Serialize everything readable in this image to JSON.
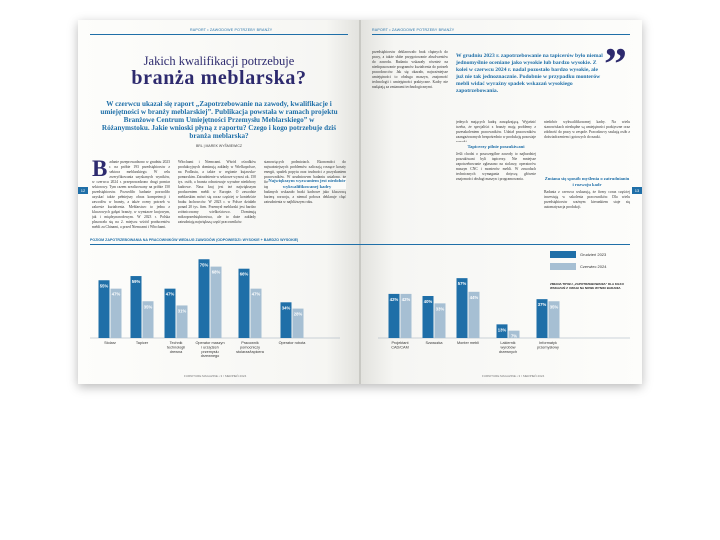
{
  "running_head": {
    "left": "RAPORT  •  ZAWODOWE POTRZEBY BRANŻY",
    "right": "RAPORT  •  ZAWODOWE POTRZEBY BRANŻY"
  },
  "article": {
    "title_line1": "Jakich kwalifikacji potrzebuje",
    "title_line2": "branża meblarska?",
    "lead": "W czerwcu ukazał się raport „Zapotrzebowanie na zawody, kwalifikacje i umiejętności w branży meblarskiej”. Publikacja powstała w ramach projektu Branżowe Centrum Umiejętności Przemysłu Meblarskiego” w Różanymstoku. Jakie wnioski płyną z raportu? Czego i kogo potrzebuje dziś branża meblarska?",
    "byline": "BRL | MAREK WYŚMIEWICZ"
  },
  "page_numbers": {
    "left": "12",
    "right": "13"
  },
  "left_columns": {
    "col1_dropcap": "B",
    "col1": "adanie przeprowadzono w grudniu 2023 r. na próbie 193 przedsiębiorstw z sektora meblarskiego. W celu zweryfikowania uzyskanych wyników, w czerwcu 2024 r. przeprowadzono drugi pomiar sektorowy. Tym razem zrealizowany na próbie 150 przedsiębiorstw. Pozwoliło badanie pozwoliło uzyskać także pełniejszy obraz kompetencji i zawodów w branży, a także oceny potrzeb w zakresie kształcenia. Meblarstwo to jedna z kluczowych gałęzi branży, w wymiarze krajowym, jak i międzynarodowym. W 2023 r. Polska plasowała się na 2. miejscu wśród producentów mebli za Chinami, a przed Niemcami i Włochami.",
    "col2": "Włochami i Niemcami. Wśród ośrodków produkcyjnych dominują zakłady w Wielkopolsce, na Podlasiu, a także w regionie kujawsko-pomorskim. Zatrudnienie w sektorze wynosi ok. 150 tys. osób, a branża odnotowuje wyraźne niedobory kadrowe. Nasz kraj jest też największym producentem mebli w Europie. O zawodzie meblarskim mówi się coraz częściej w kontekście braku fachowców. W 2023 r. w Polsce działało ponad 20 tys. firm. Przemysł meblarski jest bardzo zróżnicowany wielkościowo. Dominują mikroprzedsiębiorstwa, ale to duże zakłady zatrudniają największą część pracowników.",
    "col3_sub": "Największym wyzwaniem jest niedobór wykwalifikowanej kadry",
    "col3": "stanowiących podmiotach. Ekonomiści do najważniejszych problemów zaliczają rosnące koszty energii, spadek popytu oraz trudności z pozyskaniem pracowników. W grudniowym badaniu ustalono, że firmy z branży potrzebują przede wszystkim stolarzy, tapicerów i operatorów maszyn CNC. Ponad 60% badanych wskazało braki kadrowe jako kluczową barierę rozwoju, a niemal połowa deklaruje chęć zatrudnienia w najbliższym roku."
  },
  "right_page": {
    "top_col": "przedsiębiorstw deklarowało brak chętnych do pracy, a także słabe przygotowanie absolwentów do zawodu. Badania wskazały również na niedopasowanie programów kształcenia do potrzeb pracodawców. Jak się okazało, najważniejsze umiejętności to obsługa maszyn, znajomość technologii i umiejętności praktyczne. Kadry nie nadążają za zmianami technologicznymi.",
    "quote": "W grudniu 2023 r. zapotrzebowanie na tapicerów było niemal jednomyślnie oceniane jako wysokie lub bardzo wysokie. Z kolei w czerwcu 2024 r. nadal pozostało bardzo wysokie, ale już nie tak jednoznacznie. Podobnie w przypadku monterów mebli widać wyraźny spadek wskazań wysokiego zapotrzebowania.",
    "col2": "jednych mających kadrę zarządzającą. Wyjaśnić trzeba, że specjaliści z branży mają problemy z przeszkoleniem pracowników. Udział pracowników zaangażowanych bezpośrednio w produkcję pozostaje wysoki.",
    "col2_sub": "Tapicerzy pilnie poszukiwani",
    "col2_b": "Jeśli chodzi o poszczególne zawody to najbardziej poszukiwani byli tapicerzy. Nie mniejsze zapotrzebowanie zgłaszano na stolarzy, operatorów maszyn CNC i monterów mebli. W zawodach technicznych wymagania dotyczą głównie znajomości obsługi maszyn i programowania.",
    "col3": "niedobór wykwalifikowanej kadry. Na wielu stanowiskach niezbędne są umiejętności praktyczne oraz zdolność do pracy w zespole. Pracodawcy szukają osób z doświadczeniem i gotowych do nauki.",
    "col3_sub": "Zmiana się sposób myślenia o zatrudnianiu i rozwoju kadr",
    "col3_b": "Badania z czerwca wskazują, że firmy coraz częściej inwestują w szkolenia pracowników. Dla wielu przedsiębiorstw ważnym kierunkiem staje się automatyzacja produkcji."
  },
  "footers": {
    "left": "FURNITURE MAGAZINE • 3 / SIERPIEŃ 2024",
    "right": "FURNITURE MAGAZINE • 3 / SIERPIEŃ 2024"
  },
  "colors": {
    "series_dec": "#1f6fa8",
    "series_jun": "#a6bfd3",
    "accent": "#2d2a6e"
  },
  "chart_data": {
    "type": "bar",
    "title": "POZIOM ZAPOTRZEBOWANIA NA PRACOWNIKÓW WEDŁUG ZAWODÓW (ODPOWIEDZI: WYSOKIE + BARDZO WYSOKIE)",
    "categories": [
      "Stolarz",
      "Tapicer",
      "Technik technologii drewna",
      "Operator maszyn i urządzeń przemysłu drzewnego",
      "Pracownik pomocniczy stolarza/tapicera",
      "Operator robota",
      "Projektant CAD/CAM",
      "Szwaczka",
      "Monter mebli",
      "Lakiernik wyrobów drzewnych",
      "Informatyk przemysłowy"
    ],
    "series": [
      {
        "name": "Grudzień 2023",
        "values": [
          55,
          59,
          47,
          75,
          66,
          34,
          42,
          40,
          57,
          13,
          37
        ]
      },
      {
        "name": "Czerwiec 2024",
        "values": [
          47,
          35,
          31,
          68,
          47,
          28,
          42,
          33,
          44,
          7,
          35
        ]
      }
    ],
    "ylim": [
      0,
      80
    ],
    "legend_position": "right",
    "note": "ZMIANA TRYBU „ZAPOTRZEBOWANIA” DLA KILKU WSKAZAŃ Z UWAGI NA NOWE WYNIKI BADANIA"
  }
}
